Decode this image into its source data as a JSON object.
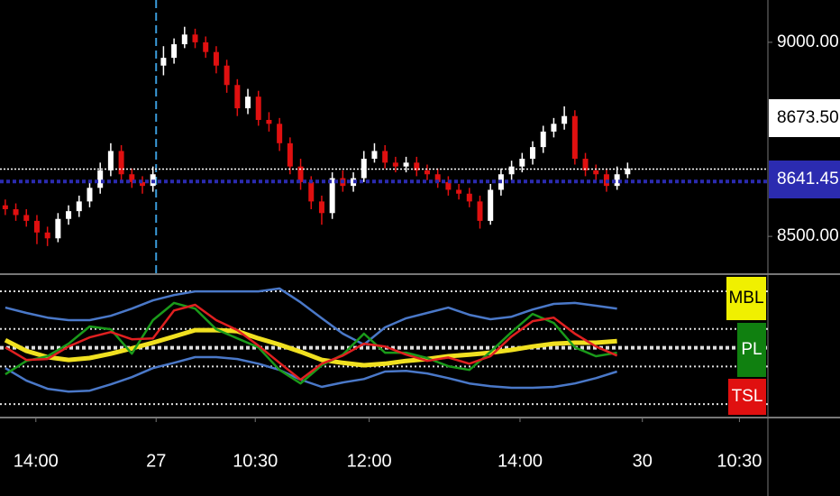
{
  "chart_data": [
    {
      "type": "candlestick",
      "xlim": [
        -0.5,
        72.3
      ],
      "xticks": [
        {
          "value": 2.9,
          "label": "14:00"
        },
        {
          "value": 14.3,
          "label": "27"
        },
        {
          "value": 23.7,
          "label": "10:30"
        },
        {
          "value": 34.5,
          "label": "12:00"
        },
        {
          "value": 48.8,
          "label": "14:00"
        },
        {
          "value": 60.4,
          "label": "30"
        },
        {
          "value": 69.6,
          "label": "10:30"
        }
      ],
      "ylim": [
        8405,
        9109
      ],
      "yticks": [
        {
          "value": 9000,
          "label": "9000.00"
        },
        {
          "value": 8500,
          "label": "8500.00"
        }
      ],
      "session_line": 14.3,
      "up_color": "#ffffff",
      "down_color": "#e01010",
      "open": [
        8580,
        8570,
        8555,
        8540,
        8510,
        8495,
        8545,
        8565,
        8590,
        8625,
        8670,
        8720,
        8660,
        8640,
        8630,
        8940,
        8960,
        8995,
        9020,
        9000,
        8975,
        8940,
        8890,
        8830,
        8860,
        8800,
        8790,
        8740,
        8680,
        8640,
        8590,
        8560,
        8650,
        8630,
        8650,
        8700,
        8720,
        8690,
        8680,
        8690,
        8670,
        8660,
        8640,
        8620,
        8610,
        8590,
        8540,
        8620,
        8660,
        8680,
        8700,
        8730,
        8770,
        8790,
        8810,
        8700,
        8670,
        8660,
        8630,
        8660
      ],
      "high": [
        8595,
        8585,
        8570,
        8555,
        8525,
        8560,
        8580,
        8605,
        8640,
        8690,
        8740,
        8735,
        8675,
        8655,
        8680,
        8990,
        9010,
        9040,
        9035,
        9015,
        8990,
        8955,
        8905,
        8880,
        8875,
        8820,
        8805,
        8755,
        8700,
        8655,
        8605,
        8665,
        8670,
        8665,
        8720,
        8740,
        8735,
        8705,
        8705,
        8705,
        8685,
        8675,
        8655,
        8635,
        8625,
        8605,
        8635,
        8675,
        8695,
        8715,
        8745,
        8785,
        8805,
        8835,
        8825,
        8715,
        8685,
        8675,
        8680,
        8690
      ],
      "low": [
        8555,
        8540,
        8525,
        8480,
        8475,
        8485,
        8530,
        8550,
        8575,
        8610,
        8655,
        8645,
        8625,
        8610,
        8615,
        8915,
        8945,
        8985,
        8985,
        8960,
        8920,
        8870,
        8810,
        8815,
        8785,
        8770,
        8720,
        8660,
        8620,
        8570,
        8530,
        8545,
        8615,
        8615,
        8640,
        8690,
        8675,
        8665,
        8665,
        8655,
        8645,
        8625,
        8605,
        8595,
        8575,
        8520,
        8530,
        8605,
        8645,
        8665,
        8685,
        8715,
        8755,
        8775,
        8685,
        8655,
        8645,
        8615,
        8620,
        8650
      ],
      "close": [
        8570,
        8555,
        8540,
        8510,
        8495,
        8545,
        8565,
        8590,
        8625,
        8670,
        8720,
        8660,
        8640,
        8630,
        8660,
        8960,
        8995,
        9020,
        9000,
        8975,
        8940,
        8890,
        8830,
        8860,
        8800,
        8790,
        8740,
        8680,
        8640,
        8590,
        8560,
        8650,
        8630,
        8650,
        8700,
        8720,
        8690,
        8680,
        8690,
        8670,
        8660,
        8640,
        8620,
        8610,
        8590,
        8540,
        8620,
        8660,
        8680,
        8700,
        8730,
        8770,
        8790,
        8810,
        8700,
        8670,
        8660,
        8630,
        8660,
        8675
      ],
      "price_lines": [
        {
          "value": 8673.5,
          "label": "8673.50",
          "color": "#ffffff",
          "text_color": "#000000"
        },
        {
          "value": 8641.45,
          "label": "8641.45",
          "color": "#2b2bb0",
          "text_color": "#ffffff"
        }
      ]
    },
    {
      "type": "line",
      "xlim": [
        -0.5,
        72.3
      ],
      "ylim": [
        28,
        73.2
      ],
      "levels": [
        68,
        56,
        50,
        44,
        32
      ],
      "x": [
        0,
        2,
        4,
        6,
        8,
        10,
        12,
        14,
        16,
        18,
        20,
        22,
        24,
        26,
        28,
        30,
        32,
        34,
        36,
        38,
        40,
        42,
        44,
        46,
        48,
        50,
        52,
        54,
        56,
        58
      ],
      "series": [
        {
          "color": "#4a78c8",
          "values": [
            62.8,
            61.1,
            59.6,
            58.8,
            58.8,
            60.2,
            62.5,
            65.1,
            66.8,
            68,
            68,
            68,
            68,
            68.9,
            64.5,
            59.4,
            54.5,
            51,
            56.5,
            59.4,
            61.1,
            62.8,
            60.5,
            59.1,
            59.9,
            62.2,
            64,
            64.3,
            63.4,
            62.5
          ]
        },
        {
          "color": "#4a78c8",
          "values": [
            43.5,
            39.5,
            36.9,
            36,
            36.3,
            38.3,
            40.6,
            43.5,
            45.2,
            47,
            47,
            46.4,
            44.9,
            42.9,
            39.8,
            37.5,
            38.9,
            40,
            42.4,
            42.6,
            41.8,
            40.3,
            38.6,
            37.7,
            37.2,
            37.2,
            37.5,
            38.6,
            40.3,
            42.4
          ]
        },
        {
          "name": "MBL",
          "color": "#f0e020",
          "tag_color": "#f0f000",
          "tag_text": "#000000",
          "values": [
            52.4,
            49,
            47,
            46.1,
            46.7,
            48.1,
            49.8,
            51.6,
            53.6,
            55.6,
            55.6,
            55.3,
            53,
            51,
            48.7,
            46.1,
            45.2,
            44.4,
            44.9,
            45.8,
            46.4,
            47.3,
            47.8,
            48.4,
            49.3,
            50.4,
            51.3,
            51.6,
            51.6,
            52.1
          ]
        },
        {
          "name": "PL",
          "color": "#1a9a1a",
          "tag_color": "#108010",
          "tag_text": "#ffffff",
          "values": [
            41.5,
            45.8,
            47.3,
            51.3,
            56.8,
            55.9,
            48.1,
            58.8,
            64.3,
            62.5,
            55.9,
            53,
            50.1,
            42.9,
            38.6,
            44.4,
            47.8,
            54.5,
            48.4,
            48.4,
            46.7,
            44.1,
            42.9,
            48.7,
            55,
            60.8,
            57.9,
            50.1,
            47.3,
            48.4
          ]
        },
        {
          "name": "TSL",
          "color": "#e02020",
          "tag_color": "#e01010",
          "tag_text": "#ffffff",
          "values": [
            50.1,
            46.1,
            46.4,
            50.4,
            53.3,
            55,
            52.7,
            53,
            61.9,
            63.7,
            58.8,
            55.6,
            50.7,
            45.2,
            39.8,
            44.9,
            47.5,
            51.3,
            50.4,
            47.8,
            45.8,
            46.9,
            44.9,
            47.3,
            53.6,
            58.5,
            59.6,
            54.5,
            50.4,
            47.5
          ]
        }
      ]
    }
  ]
}
